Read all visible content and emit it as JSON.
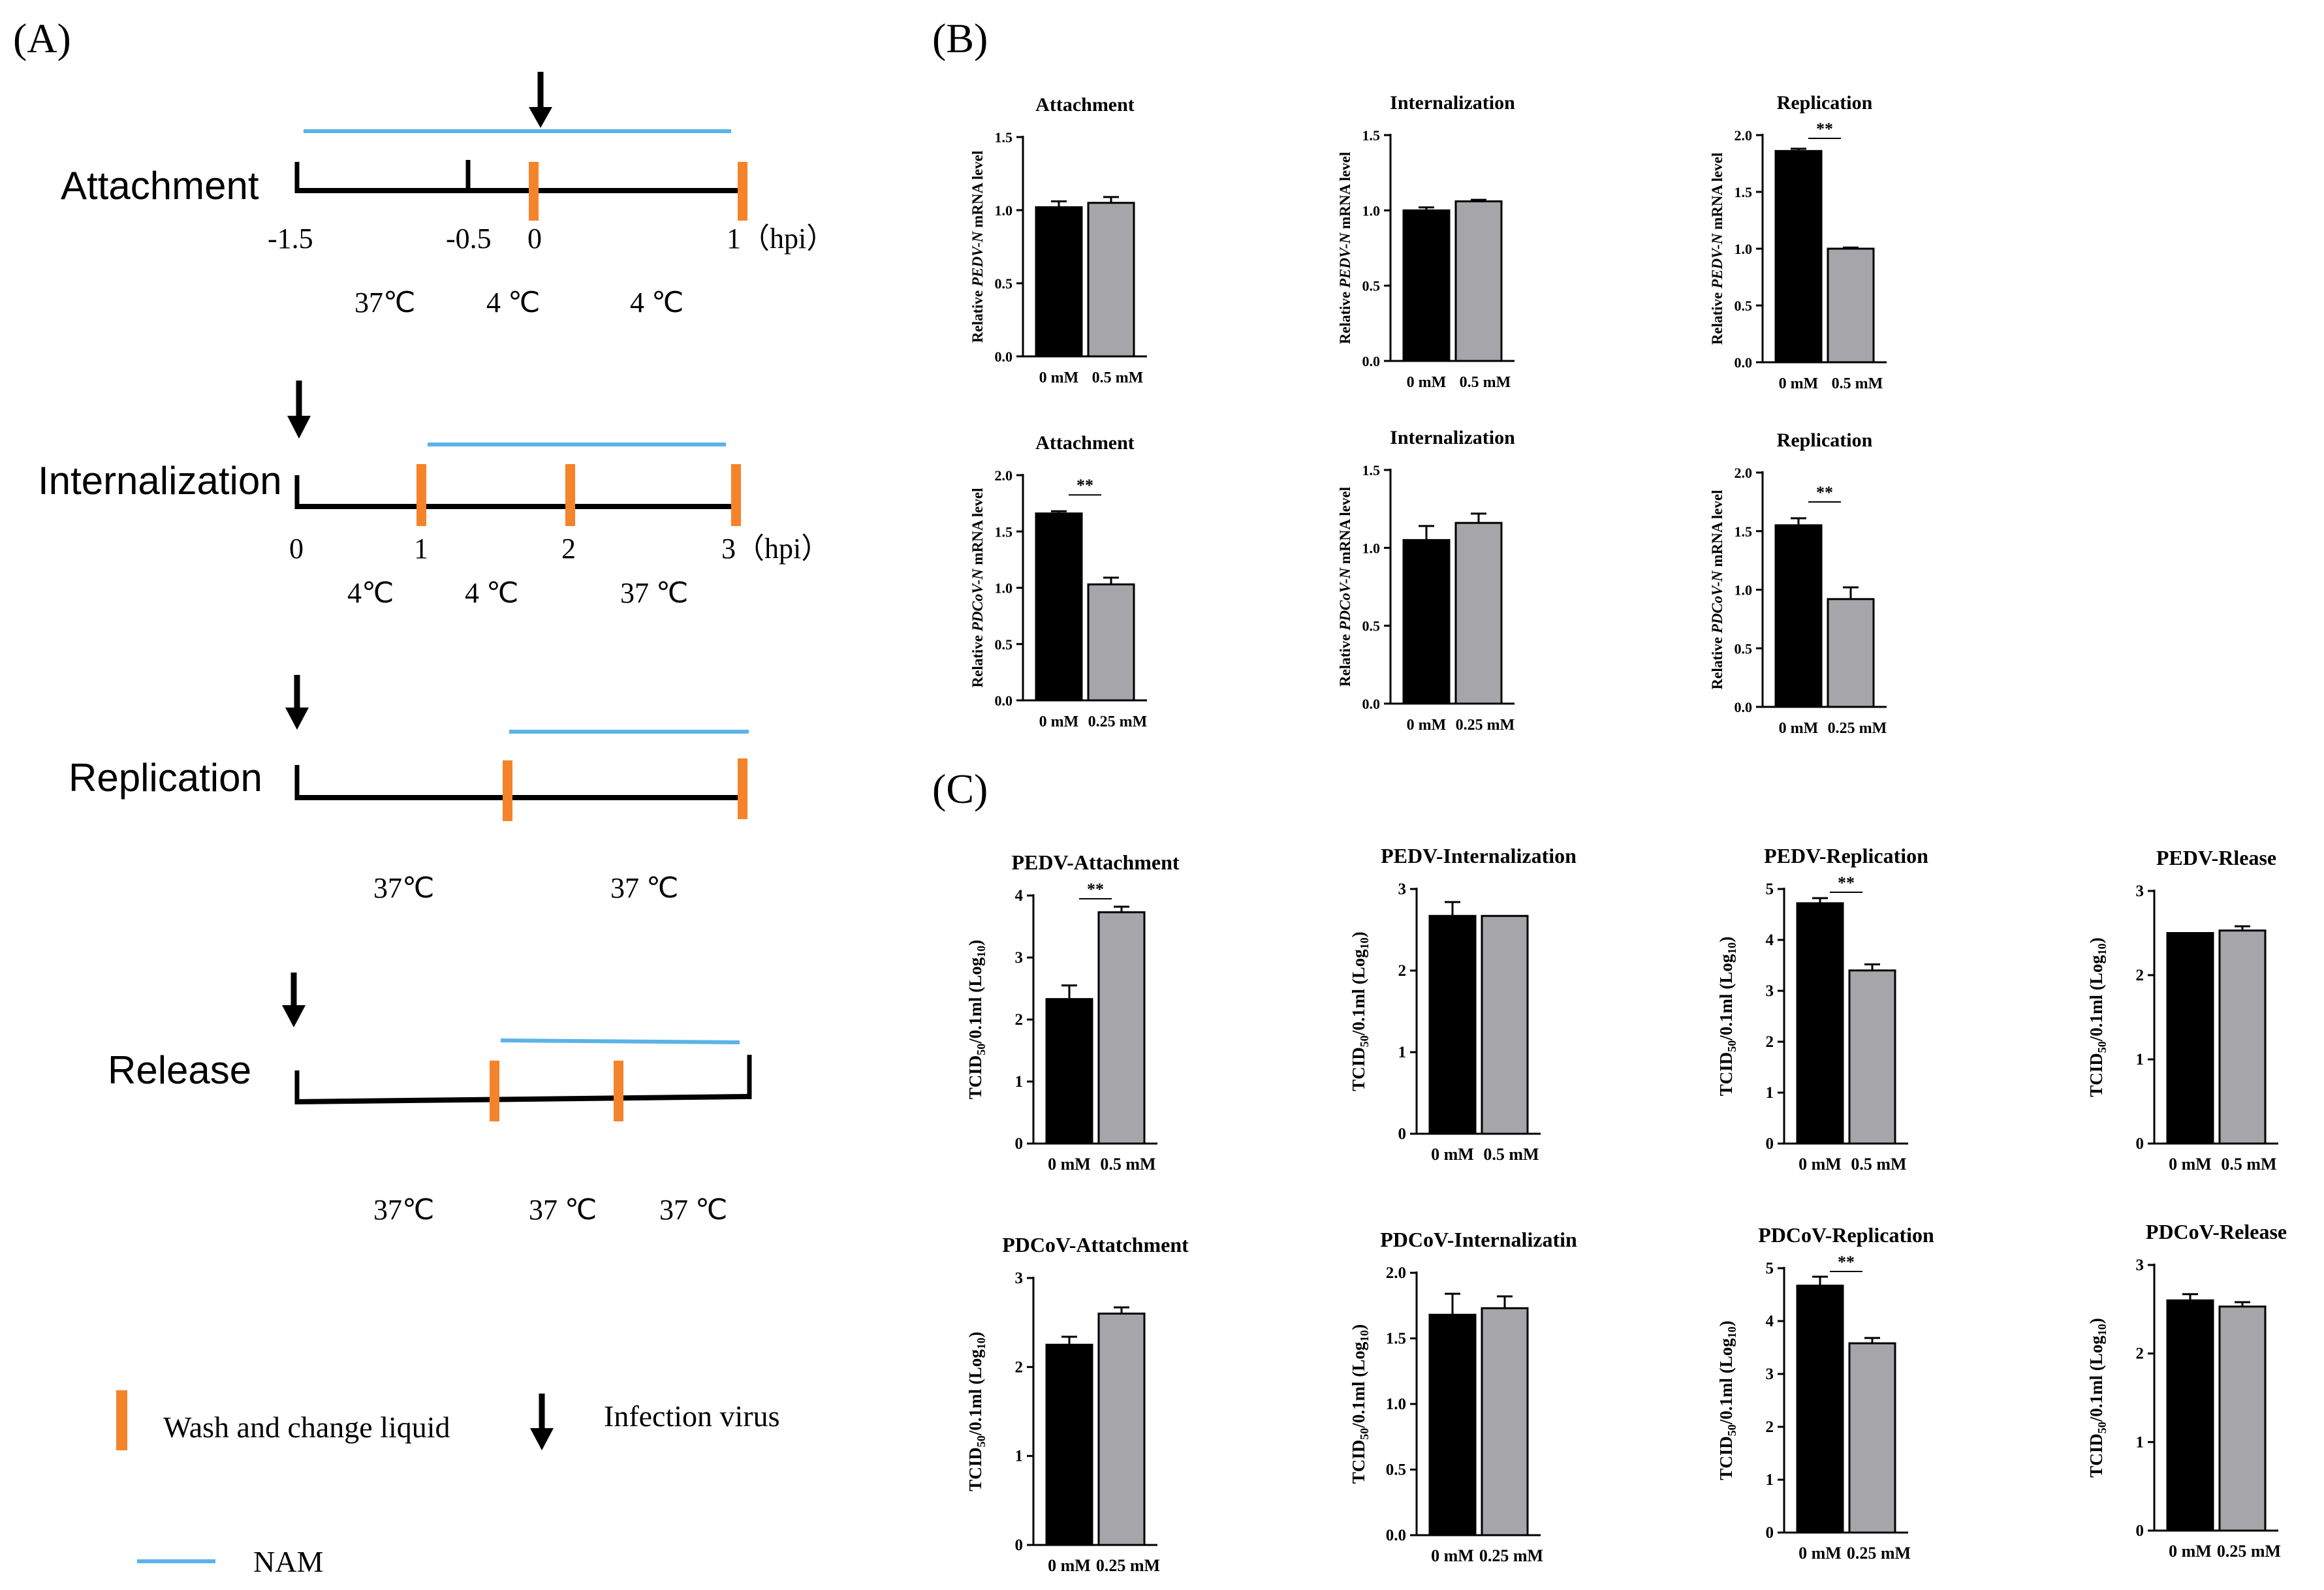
{
  "panels": {
    "a": "(A)",
    "b": "(B)",
    "c": "(C)"
  },
  "colors": {
    "nam_line": "#5bb3e8",
    "wash_marker": "#f5832a",
    "bar_control": "#000000",
    "bar_treated": "#a6a6aa",
    "text": "#000000"
  },
  "timeline": {
    "attachment": {
      "name": "Attachment",
      "ticks": [
        "-1.5",
        "-0.5",
        "0",
        "1（hpi）"
      ],
      "temps": [
        "37℃",
        "4 ℃",
        "4 ℃"
      ]
    },
    "internalization": {
      "name": "Internalization",
      "ticks": [
        "0",
        "1",
        "2",
        "3（hpi）"
      ],
      "temps": [
        "4℃",
        "4 ℃",
        "37 ℃"
      ]
    },
    "replication": {
      "name": "Replication",
      "temps": [
        "37℃",
        "37 ℃"
      ]
    },
    "release": {
      "name": "Release",
      "temps": [
        "37℃",
        "37 ℃",
        "37 ℃"
      ]
    }
  },
  "legend": {
    "wash": "Wash and change liquid",
    "infection": "Infection virus",
    "nam": "NAM"
  },
  "chart_data": [
    {
      "id": "b1",
      "type": "bar",
      "title": "Attachment",
      "ylabel_pre": "Relative ",
      "ylabel_gene": "PEDV-N",
      "ylabel_post": " mRNA level",
      "ylim": [
        0,
        1.5
      ],
      "yticks": [
        "0.0",
        "0.5",
        "1.0",
        "1.5"
      ],
      "categories": [
        "0 mM",
        "0.5 mM"
      ],
      "values": [
        1.02,
        1.05
      ],
      "errors": [
        0.04,
        0.04
      ],
      "sig": ""
    },
    {
      "id": "b2",
      "type": "bar",
      "title": "Internalization",
      "ylabel_pre": "Relative ",
      "ylabel_gene": "PEDV-N",
      "ylabel_post": " mRNA level",
      "ylim": [
        0,
        1.5
      ],
      "yticks": [
        "0.0",
        "0.5",
        "1.0",
        "1.5"
      ],
      "categories": [
        "0 mM",
        "0.5 mM"
      ],
      "values": [
        1.0,
        1.06
      ],
      "errors": [
        0.02,
        0.01
      ],
      "sig": ""
    },
    {
      "id": "b3",
      "type": "bar",
      "title": "Replication",
      "ylabel_pre": "Relative ",
      "ylabel_gene": "PEDV-N",
      "ylabel_post": " mRNA level",
      "ylim": [
        0,
        2.0
      ],
      "yticks": [
        "0.0",
        "0.5",
        "1.0",
        "1.5",
        "2.0"
      ],
      "categories": [
        "0 mM",
        "0.5 mM"
      ],
      "values": [
        1.86,
        1.0
      ],
      "errors": [
        0.02,
        0.01
      ],
      "sig": "**"
    },
    {
      "id": "b4",
      "type": "bar",
      "title": "Attachment",
      "ylabel_pre": "Relative ",
      "ylabel_gene": "PDCoV-N",
      "ylabel_post": " mRNA level",
      "ylim": [
        0,
        2.0
      ],
      "yticks": [
        "0.0",
        "0.5",
        "1.0",
        "1.5",
        "2.0"
      ],
      "categories": [
        "0 mM",
        "0.25 mM"
      ],
      "values": [
        1.66,
        1.03
      ],
      "errors": [
        0.02,
        0.06
      ],
      "sig": "**"
    },
    {
      "id": "b5",
      "type": "bar",
      "title": "Internalization",
      "ylabel_pre": "Relative ",
      "ylabel_gene": "PDCoV-N",
      "ylabel_post": " mRNA level",
      "ylim": [
        0,
        1.5
      ],
      "yticks": [
        "0.0",
        "0.5",
        "1.0",
        "1.5"
      ],
      "categories": [
        "0 mM",
        "0.25 mM"
      ],
      "values": [
        1.05,
        1.16
      ],
      "errors": [
        0.09,
        0.06
      ],
      "sig": ""
    },
    {
      "id": "b6",
      "type": "bar",
      "title": "Replication",
      "ylabel_pre": "Relative ",
      "ylabel_gene": "PDCoV-N",
      "ylabel_post": " mRNA level",
      "ylim": [
        0,
        2.0
      ],
      "yticks": [
        "0.0",
        "0.5",
        "1.0",
        "1.5",
        "2.0"
      ],
      "categories": [
        "0 mM",
        "0.25 mM"
      ],
      "values": [
        1.55,
        0.92
      ],
      "errors": [
        0.06,
        0.1
      ],
      "sig": "**"
    },
    {
      "id": "c1",
      "type": "bar",
      "title": "PEDV-Attachment",
      "ylabel_pre": "TCID",
      "ylabel_sub": "50",
      "ylabel_mid": "/0.1ml (Log",
      "ylabel_sub2": "10",
      "ylabel_end": ")",
      "ylim": [
        0,
        4
      ],
      "yticks": [
        "0",
        "1",
        "2",
        "3",
        "4"
      ],
      "categories": [
        "0 mM",
        "0.5 mM"
      ],
      "values": [
        2.33,
        3.73
      ],
      "errors": [
        0.22,
        0.09
      ],
      "sig": "**"
    },
    {
      "id": "c2",
      "type": "bar",
      "title": "PEDV-Internalization",
      "ylabel_pre": "TCID",
      "ylabel_sub": "50",
      "ylabel_mid": "/0.1ml (Log",
      "ylabel_sub2": "10",
      "ylabel_end": ")",
      "ylim": [
        0,
        3
      ],
      "yticks": [
        "0",
        "1",
        "2",
        "3"
      ],
      "categories": [
        "0 mM",
        "0.5 mM"
      ],
      "values": [
        2.67,
        2.67
      ],
      "errors": [
        0.17,
        0.0
      ],
      "sig": ""
    },
    {
      "id": "c3",
      "type": "bar",
      "title": "PEDV-Replication",
      "ylabel_pre": "TCID",
      "ylabel_sub": "50",
      "ylabel_mid": "/0.1ml (Log",
      "ylabel_sub2": "10",
      "ylabel_end": ")",
      "ylim": [
        0,
        5
      ],
      "yticks": [
        "0",
        "1",
        "2",
        "3",
        "4",
        "5"
      ],
      "categories": [
        "0 mM",
        "0.5 mM"
      ],
      "values": [
        4.72,
        3.4
      ],
      "errors": [
        0.1,
        0.12
      ],
      "sig": "**"
    },
    {
      "id": "c4",
      "type": "bar",
      "title": "PEDV-Rlease",
      "ylabel_pre": "TCID",
      "ylabel_sub": "50",
      "ylabel_mid": "/0.1ml (Log",
      "ylabel_sub2": "10",
      "ylabel_end": ")",
      "ylim": [
        0,
        3
      ],
      "yticks": [
        "0",
        "1",
        "2",
        "3"
      ],
      "categories": [
        "0 mM",
        "0.5 mM"
      ],
      "values": [
        2.5,
        2.53
      ],
      "errors": [
        0.0,
        0.05
      ],
      "sig": ""
    },
    {
      "id": "c5",
      "type": "bar",
      "title": "PDCoV-Attatchment",
      "ylabel_pre": "TCID",
      "ylabel_sub": "50",
      "ylabel_mid": "/0.1ml (Log",
      "ylabel_sub2": "10",
      "ylabel_end": ")",
      "ylim": [
        0,
        3
      ],
      "yticks": [
        "0",
        "1",
        "2",
        "3"
      ],
      "categories": [
        "0 mM",
        "0.25 mM"
      ],
      "values": [
        2.25,
        2.6
      ],
      "errors": [
        0.09,
        0.07
      ],
      "sig": ""
    },
    {
      "id": "c6",
      "type": "bar",
      "title": "PDCoV-Internalizatin",
      "ylabel_pre": "TCID",
      "ylabel_sub": "50",
      "ylabel_mid": "/0.1ml (Log",
      "ylabel_sub2": "10",
      "ylabel_end": ")",
      "ylim": [
        0,
        2.0
      ],
      "yticks": [
        "0.0",
        "0.5",
        "1.0",
        "1.5",
        "2.0"
      ],
      "categories": [
        "0 mM",
        "0.25 mM"
      ],
      "values": [
        1.68,
        1.73
      ],
      "errors": [
        0.16,
        0.09
      ],
      "sig": ""
    },
    {
      "id": "c7",
      "type": "bar",
      "title": "PDCoV-Replication",
      "ylabel_pre": "TCID",
      "ylabel_sub": "50",
      "ylabel_mid": "/0.1ml (Log",
      "ylabel_sub2": "10",
      "ylabel_end": ")",
      "ylim": [
        0,
        5
      ],
      "yticks": [
        "0",
        "1",
        "2",
        "3",
        "4",
        "5"
      ],
      "categories": [
        "0 mM",
        "0.25 mM"
      ],
      "values": [
        4.67,
        3.58
      ],
      "errors": [
        0.17,
        0.1
      ],
      "sig": "**"
    },
    {
      "id": "c8",
      "type": "bar",
      "title": "PDCoV-Release",
      "ylabel_pre": "TCID",
      "ylabel_sub": "50",
      "ylabel_mid": "/0.1ml (Log",
      "ylabel_sub2": "10",
      "ylabel_end": ")",
      "ylim": [
        0,
        3
      ],
      "yticks": [
        "0",
        "1",
        "2",
        "3"
      ],
      "categories": [
        "0 mM",
        "0.25 mM"
      ],
      "values": [
        2.6,
        2.53
      ],
      "errors": [
        0.07,
        0.05
      ],
      "sig": ""
    }
  ]
}
